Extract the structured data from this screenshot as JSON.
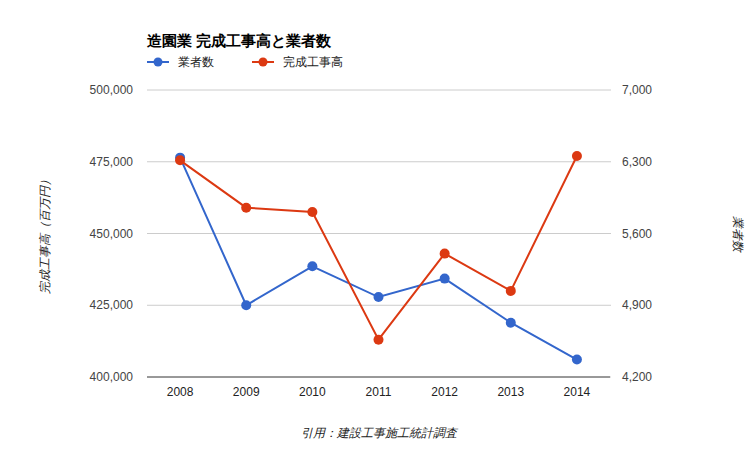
{
  "chart_data": {
    "type": "line",
    "title": "造園業 完成工事高と業者数",
    "y_label": "完成工事高（百万円）",
    "y2_label": "業者数",
    "source": "引用：建設工事施工統計調査",
    "categories": [
      "2008",
      "2009",
      "2010",
      "2011",
      "2012",
      "2013",
      "2014"
    ],
    "series": [
      {
        "name": "業者数",
        "color": "#3366cc",
        "axis": "y2",
        "marker": "circle",
        "values": [
          6340,
          4900,
          5280,
          4980,
          5160,
          4730,
          4370
        ]
      },
      {
        "name": "完成工事高",
        "color": "#dc3912",
        "axis": "y",
        "marker": "circle",
        "values": [
          475500,
          459000,
          457500,
          413000,
          443000,
          430000,
          477000
        ]
      }
    ],
    "ylim": [
      400000,
      500000
    ],
    "yticks": [
      {
        "value": 400000,
        "label": "400,000"
      },
      {
        "value": 425000,
        "label": "425,000"
      },
      {
        "value": 450000,
        "label": "450,000"
      },
      {
        "value": 475000,
        "label": "475,000"
      },
      {
        "value": 500000,
        "label": "500,000"
      }
    ],
    "y2lim": [
      4200,
      7000
    ],
    "y2ticks": [
      {
        "value": 4200,
        "label": "4,200"
      },
      {
        "value": 4900,
        "label": "4,900"
      },
      {
        "value": 5600,
        "label": "5,600"
      },
      {
        "value": 6300,
        "label": "6,300"
      },
      {
        "value": 7000,
        "label": "7,000"
      }
    ],
    "grid": true,
    "legend": "top-left"
  }
}
